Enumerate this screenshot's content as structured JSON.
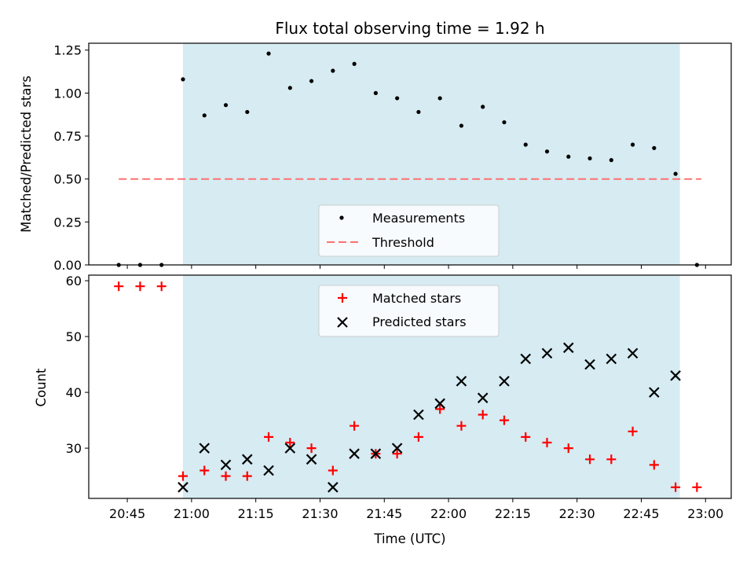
{
  "colors": {
    "shade": "#add8e6",
    "measurement": "#000000",
    "threshold": "#ff7070",
    "matched": "#ff0000",
    "predicted": "#000000"
  },
  "chart_data": [
    {
      "type": "scatter",
      "title": "Flux total observing time = 1.92 h",
      "xlabel": "",
      "ylabel": "Matched/Predicted stars",
      "xlim": [
        "20:36",
        "23:06"
      ],
      "ylim": [
        0,
        1.29
      ],
      "yticks": [
        "0.00",
        "0.25",
        "0.50",
        "0.75",
        "1.00",
        "1.25"
      ],
      "shaded_span": [
        "20:58",
        "22:54"
      ],
      "legend_position": "lower center",
      "legend": {
        "measurements": "Measurements",
        "threshold": "Threshold"
      },
      "threshold": {
        "name": "Threshold",
        "y": 0.5,
        "x": [
          "20:43",
          "22:59"
        ],
        "style": "dashed"
      },
      "series": [
        {
          "name": "Measurements",
          "x": [
            "20:43",
            "20:48",
            "20:53",
            "20:58",
            "21:03",
            "21:08",
            "21:13",
            "21:18",
            "21:23",
            "21:28",
            "21:33",
            "21:38",
            "21:43",
            "21:48",
            "21:53",
            "21:58",
            "22:03",
            "22:08",
            "22:13",
            "22:18",
            "22:23",
            "22:28",
            "22:33",
            "22:38",
            "22:43",
            "22:48",
            "22:53",
            "22:58"
          ],
          "y": [
            0,
            0,
            0,
            1.08,
            0.87,
            0.93,
            0.89,
            1.23,
            1.03,
            1.07,
            1.13,
            1.17,
            1.0,
            0.97,
            0.89,
            0.97,
            0.81,
            0.92,
            0.83,
            0.7,
            0.66,
            0.63,
            0.62,
            0.61,
            0.7,
            0.68,
            0.53,
            0
          ]
        }
      ]
    },
    {
      "type": "scatter",
      "title": "",
      "xlabel": "Time (UTC)",
      "ylabel": "Count",
      "xlim": [
        "20:36",
        "23:06"
      ],
      "ylim": [
        21,
        61
      ],
      "xticks": [
        "20:45",
        "21:00",
        "21:15",
        "21:30",
        "21:45",
        "22:00",
        "22:15",
        "22:30",
        "22:45",
        "23:00"
      ],
      "yticks": [
        "30",
        "40",
        "50",
        "60"
      ],
      "shaded_span": [
        "20:58",
        "22:54"
      ],
      "legend_position": "upper center",
      "legend": {
        "matched": "Matched stars",
        "predicted": "Predicted stars"
      },
      "series": [
        {
          "name": "Matched stars",
          "marker": "+",
          "x": [
            "20:43",
            "20:48",
            "20:53",
            "20:58",
            "21:03",
            "21:08",
            "21:13",
            "21:18",
            "21:23",
            "21:28",
            "21:33",
            "21:38",
            "21:43",
            "21:48",
            "21:53",
            "21:58",
            "22:03",
            "22:08",
            "22:13",
            "22:18",
            "22:23",
            "22:28",
            "22:33",
            "22:38",
            "22:43",
            "22:48",
            "22:53",
            "22:58"
          ],
          "y": [
            59,
            59,
            59,
            25,
            26,
            25,
            25,
            32,
            31,
            30,
            26,
            34,
            29,
            29,
            32,
            37,
            34,
            36,
            35,
            32,
            31,
            30,
            28,
            28,
            33,
            27,
            23,
            23
          ]
        },
        {
          "name": "Predicted stars",
          "marker": "x",
          "x": [
            "20:58",
            "21:03",
            "21:08",
            "21:13",
            "21:18",
            "21:23",
            "21:28",
            "21:33",
            "21:38",
            "21:43",
            "21:48",
            "21:53",
            "21:58",
            "22:03",
            "22:08",
            "22:13",
            "22:18",
            "22:23",
            "22:28",
            "22:33",
            "22:38",
            "22:43",
            "22:48",
            "22:53"
          ],
          "y": [
            23,
            30,
            27,
            28,
            26,
            30,
            28,
            23,
            29,
            29,
            30,
            36,
            38,
            42,
            39,
            42,
            46,
            47,
            48,
            45,
            46,
            47,
            40,
            43
          ]
        }
      ]
    }
  ]
}
